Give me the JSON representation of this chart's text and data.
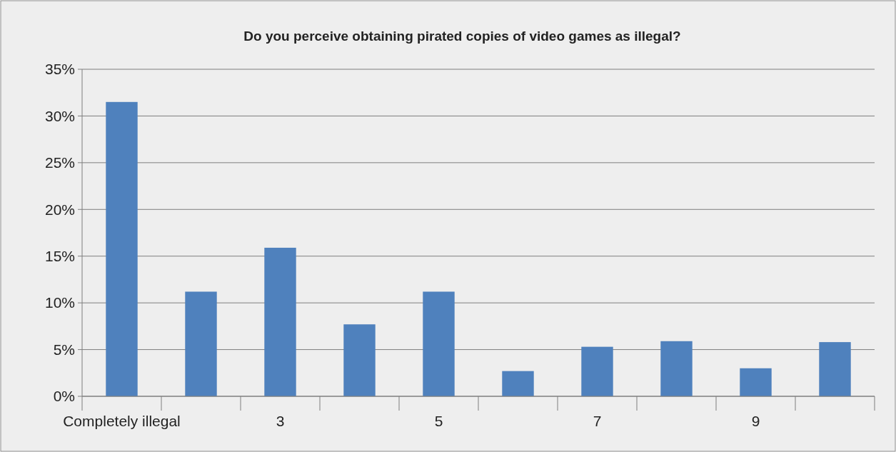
{
  "chart_data": {
    "type": "bar",
    "title": "Do you perceive obtaining pirated copies of video games as illegal?",
    "categories": [
      "Completely illegal",
      null,
      "3",
      null,
      "5",
      null,
      "7",
      null,
      "9",
      null
    ],
    "values": [
      31.5,
      11.2,
      15.9,
      7.7,
      11.2,
      2.7,
      5.3,
      5.9,
      3.0,
      5.8
    ],
    "color": "#4f81bd",
    "ylim": [
      0,
      35
    ],
    "yticks": [
      {
        "value": 0,
        "label": "0%"
      },
      {
        "value": 5,
        "label": "5%"
      },
      {
        "value": 10,
        "label": "10%"
      },
      {
        "value": 15,
        "label": "15%"
      },
      {
        "value": 20,
        "label": "20%"
      },
      {
        "value": 25,
        "label": "25%"
      },
      {
        "value": 30,
        "label": "30%"
      },
      {
        "value": 35,
        "label": "35%"
      }
    ],
    "grid": "y"
  }
}
